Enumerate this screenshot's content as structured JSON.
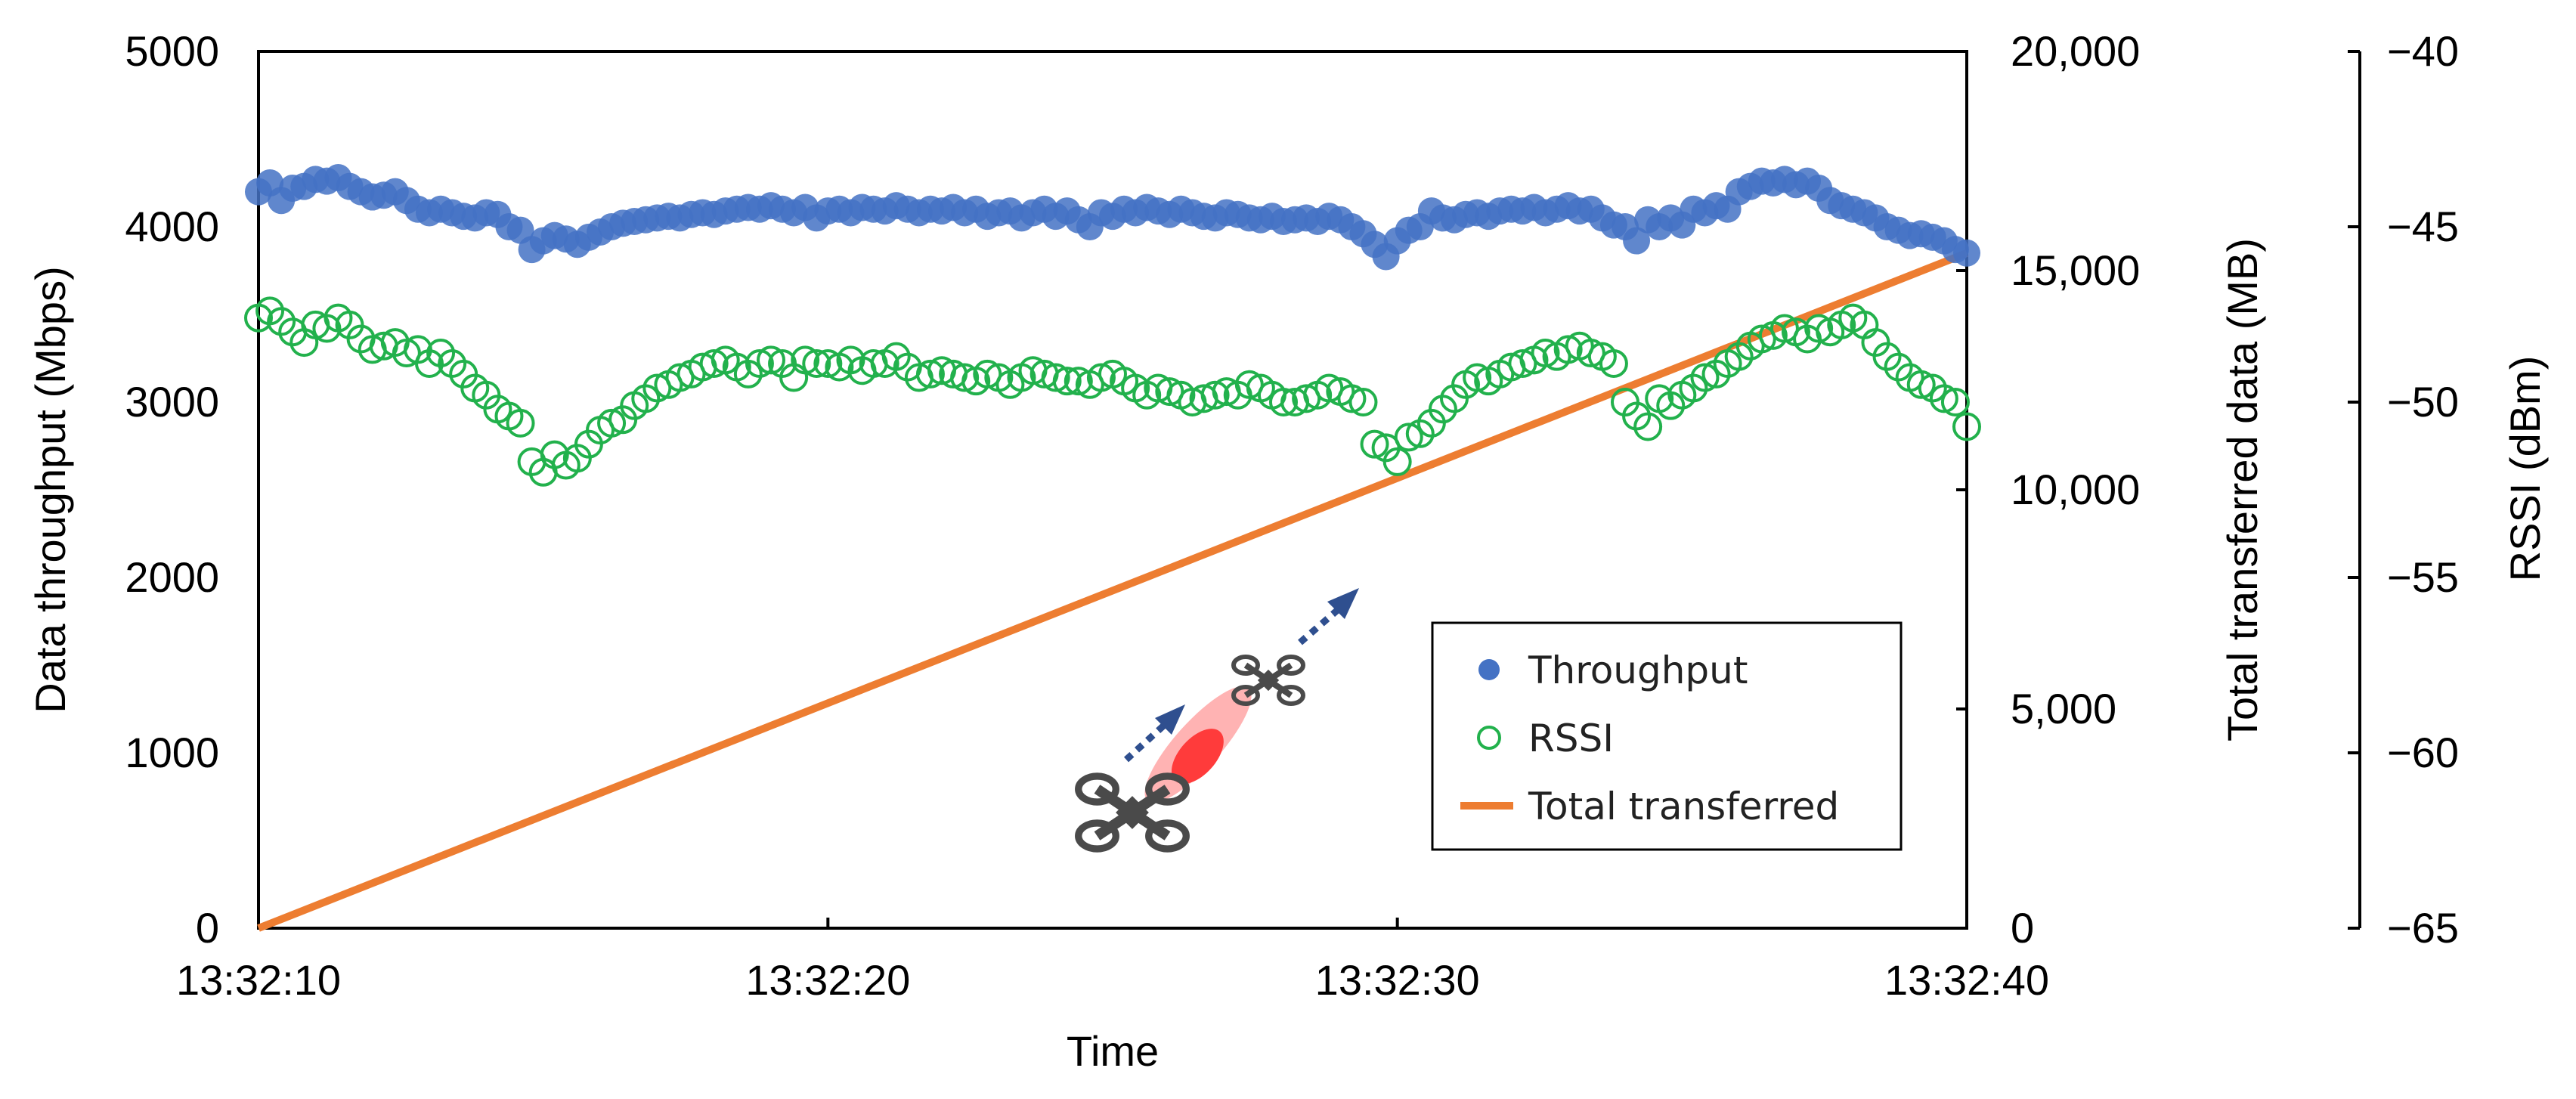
{
  "chart_data": {
    "type": "scatter",
    "xlabel": "Time",
    "x_ticks": [
      "13:32:10",
      "13:32:20",
      "13:32:30",
      "13:32:40"
    ],
    "xlim_seconds": [
      0,
      30
    ],
    "y_left": {
      "label": "Data throughput (Mbps)",
      "lim": [
        0,
        5000
      ],
      "ticks": [
        "0",
        "1000",
        "2000",
        "3000",
        "4000",
        "5000"
      ]
    },
    "y_right1": {
      "label": "Total transferred data (MB)",
      "lim": [
        0,
        20000
      ],
      "ticks": [
        "0",
        "5,000",
        "10,000",
        "15,000",
        "20,000"
      ]
    },
    "y_right2": {
      "label": "RSSI (dBm)",
      "lim": [
        -65,
        -40
      ],
      "ticks": [
        "−65",
        "−60",
        "−55",
        "−50",
        "−45",
        "−40"
      ]
    },
    "legend": {
      "position": "lower-right",
      "entries": [
        "Throughput",
        "RSSI",
        "Total transferred"
      ]
    },
    "series": [
      {
        "name": "Throughput",
        "axis": "left",
        "style": "filled-circle",
        "color": "#4472C4",
        "x": [
          0,
          0.2,
          0.4,
          0.6,
          0.8,
          1.0,
          1.2,
          1.4,
          1.6,
          1.8,
          2.0,
          2.2,
          2.4,
          2.6,
          2.8,
          3.0,
          3.2,
          3.4,
          3.6,
          3.8,
          4.0,
          4.2,
          4.4,
          4.6,
          4.8,
          5.0,
          5.2,
          5.4,
          5.6,
          5.8,
          6.0,
          6.2,
          6.4,
          6.6,
          6.8,
          7.0,
          7.2,
          7.4,
          7.6,
          7.8,
          8.0,
          8.2,
          8.4,
          8.6,
          8.8,
          9.0,
          9.2,
          9.4,
          9.6,
          9.8,
          10.0,
          10.2,
          10.4,
          10.6,
          10.8,
          11.0,
          11.2,
          11.4,
          11.6,
          11.8,
          12.0,
          12.2,
          12.4,
          12.6,
          12.8,
          13.0,
          13.2,
          13.4,
          13.6,
          13.8,
          14.0,
          14.2,
          14.4,
          14.6,
          14.8,
          15.0,
          15.2,
          15.4,
          15.6,
          15.8,
          16.0,
          16.2,
          16.4,
          16.6,
          16.8,
          17.0,
          17.2,
          17.4,
          17.6,
          17.8,
          18.0,
          18.2,
          18.4,
          18.6,
          18.8,
          19.0,
          19.2,
          19.4,
          19.6,
          19.8,
          20.0,
          20.2,
          20.4,
          20.6,
          20.8,
          21.0,
          21.2,
          21.4,
          21.6,
          21.8,
          22.0,
          22.2,
          22.4,
          22.6,
          22.8,
          23.0,
          23.2,
          23.4,
          23.6,
          23.8,
          24.0,
          24.2,
          24.4,
          24.6,
          24.8,
          25.0,
          25.2,
          25.4,
          25.6,
          25.8,
          26.0,
          26.2,
          26.4,
          26.6,
          26.8,
          27.0,
          27.2,
          27.4,
          27.6,
          27.8,
          28.0,
          28.2,
          28.4,
          28.6,
          28.8,
          29.0,
          29.2,
          29.4,
          29.6,
          29.8,
          30.0
        ],
        "y": [
          4200,
          4250,
          4150,
          4220,
          4230,
          4270,
          4260,
          4280,
          4230,
          4200,
          4170,
          4180,
          4200,
          4150,
          4100,
          4080,
          4100,
          4080,
          4060,
          4050,
          4080,
          4070,
          4000,
          3980,
          3870,
          3920,
          3950,
          3930,
          3900,
          3940,
          3970,
          4000,
          4020,
          4030,
          4040,
          4050,
          4060,
          4050,
          4070,
          4080,
          4070,
          4090,
          4100,
          4110,
          4100,
          4120,
          4100,
          4080,
          4110,
          4050,
          4090,
          4100,
          4080,
          4110,
          4100,
          4090,
          4120,
          4100,
          4080,
          4100,
          4090,
          4110,
          4080,
          4100,
          4060,
          4080,
          4090,
          4050,
          4080,
          4100,
          4060,
          4090,
          4040,
          4000,
          4080,
          4060,
          4100,
          4080,
          4110,
          4090,
          4070,
          4100,
          4080,
          4060,
          4050,
          4080,
          4070,
          4050,
          4040,
          4060,
          4030,
          4040,
          4050,
          4030,
          4060,
          4040,
          4000,
          3960,
          3900,
          3830,
          3920,
          3980,
          4000,
          4090,
          4050,
          4040,
          4070,
          4080,
          4060,
          4090,
          4100,
          4090,
          4110,
          4080,
          4100,
          4120,
          4090,
          4100,
          4050,
          4010,
          4000,
          3920,
          4040,
          4000,
          4050,
          4010,
          4100,
          4080,
          4120,
          4100,
          4200,
          4230,
          4260,
          4250,
          4270,
          4240,
          4260,
          4220,
          4150,
          4120,
          4100,
          4080,
          4050,
          4000,
          3980,
          3950,
          3960,
          3940,
          3920,
          3870,
          3850
        ]
      },
      {
        "name": "RSSI",
        "axis": "right2",
        "style": "open-circle",
        "color": "#22B14C",
        "x": [
          0,
          0.2,
          0.4,
          0.6,
          0.8,
          1.0,
          1.2,
          1.4,
          1.6,
          1.8,
          2.0,
          2.2,
          2.4,
          2.6,
          2.8,
          3.0,
          3.2,
          3.4,
          3.6,
          3.8,
          4.0,
          4.2,
          4.4,
          4.6,
          4.8,
          5.0,
          5.2,
          5.4,
          5.6,
          5.8,
          6.0,
          6.2,
          6.4,
          6.6,
          6.8,
          7.0,
          7.2,
          7.4,
          7.6,
          7.8,
          8.0,
          8.2,
          8.4,
          8.6,
          8.8,
          9.0,
          9.2,
          9.4,
          9.6,
          9.8,
          10.0,
          10.2,
          10.4,
          10.6,
          10.8,
          11.0,
          11.2,
          11.4,
          11.6,
          11.8,
          12.0,
          12.2,
          12.4,
          12.6,
          12.8,
          13.0,
          13.2,
          13.4,
          13.6,
          13.8,
          14.0,
          14.2,
          14.4,
          14.6,
          14.8,
          15.0,
          15.2,
          15.4,
          15.6,
          15.8,
          16.0,
          16.2,
          16.4,
          16.6,
          16.8,
          17.0,
          17.2,
          17.4,
          17.6,
          17.8,
          18.0,
          18.2,
          18.4,
          18.6,
          18.8,
          19.0,
          19.2,
          19.4,
          19.6,
          19.8,
          20.0,
          20.2,
          20.4,
          20.6,
          20.8,
          21.0,
          21.2,
          21.4,
          21.6,
          21.8,
          22.0,
          22.2,
          22.4,
          22.6,
          22.8,
          23.0,
          23.2,
          23.4,
          23.6,
          23.8,
          24.0,
          24.2,
          24.4,
          24.6,
          24.8,
          25.0,
          25.2,
          25.4,
          25.6,
          25.8,
          26.0,
          26.2,
          26.4,
          26.6,
          26.8,
          27.0,
          27.2,
          27.4,
          27.6,
          27.8,
          28.0,
          28.2,
          28.4,
          28.6,
          28.8,
          29.0,
          29.2,
          29.4,
          29.6,
          29.8,
          30.0
        ],
        "y": [
          -47.6,
          -47.4,
          -47.7,
          -48.0,
          -48.3,
          -47.8,
          -47.9,
          -47.6,
          -47.8,
          -48.2,
          -48.5,
          -48.4,
          -48.3,
          -48.6,
          -48.5,
          -48.9,
          -48.6,
          -48.9,
          -49.2,
          -49.6,
          -49.8,
          -50.2,
          -50.4,
          -50.6,
          -51.7,
          -52.0,
          -51.5,
          -51.8,
          -51.6,
          -51.2,
          -50.8,
          -50.6,
          -50.5,
          -50.1,
          -49.9,
          -49.6,
          -49.5,
          -49.3,
          -49.2,
          -49.0,
          -48.9,
          -48.8,
          -49.0,
          -49.2,
          -48.9,
          -48.8,
          -48.9,
          -49.3,
          -48.8,
          -48.9,
          -48.9,
          -49.0,
          -48.8,
          -49.1,
          -48.9,
          -48.9,
          -48.7,
          -49.0,
          -49.3,
          -49.2,
          -49.1,
          -49.2,
          -49.3,
          -49.4,
          -49.2,
          -49.3,
          -49.5,
          -49.3,
          -49.1,
          -49.2,
          -49.3,
          -49.4,
          -49.4,
          -49.5,
          -49.3,
          -49.2,
          -49.4,
          -49.6,
          -49.8,
          -49.6,
          -49.7,
          -49.8,
          -50.0,
          -49.9,
          -49.8,
          -49.7,
          -49.8,
          -49.5,
          -49.6,
          -49.8,
          -50.0,
          -50.0,
          -49.9,
          -49.8,
          -49.6,
          -49.7,
          -49.9,
          -50.0,
          -51.2,
          -51.3,
          -51.7,
          -51.0,
          -50.9,
          -50.6,
          -50.2,
          -49.9,
          -49.5,
          -49.3,
          -49.4,
          -49.2,
          -49.0,
          -48.9,
          -48.8,
          -48.6,
          -48.7,
          -48.5,
          -48.4,
          -48.6,
          -48.7,
          -48.9,
          -50.0,
          -50.4,
          -50.7,
          -49.9,
          -50.1,
          -49.8,
          -49.6,
          -49.3,
          -49.2,
          -48.9,
          -48.7,
          -48.4,
          -48.2,
          -48.1,
          -47.9,
          -48.0,
          -48.2,
          -47.9,
          -48.0,
          -47.8,
          -47.6,
          -47.8,
          -48.3,
          -48.7,
          -49.0,
          -49.3,
          -49.5,
          -49.6,
          -49.9,
          -50.0,
          -50.7
        ]
      },
      {
        "name": "Total transferred",
        "axis": "right1",
        "style": "line",
        "color": "#ED7D31",
        "x": [
          0,
          30
        ],
        "y": [
          0,
          15400
        ]
      }
    ]
  },
  "colors": {
    "throughput": "#4472C4",
    "rssi": "#22B14C",
    "total": "#ED7D31",
    "arrow": "#2F4F8F",
    "beam": "#FF3B3B",
    "drone": "#4A4A4A"
  }
}
